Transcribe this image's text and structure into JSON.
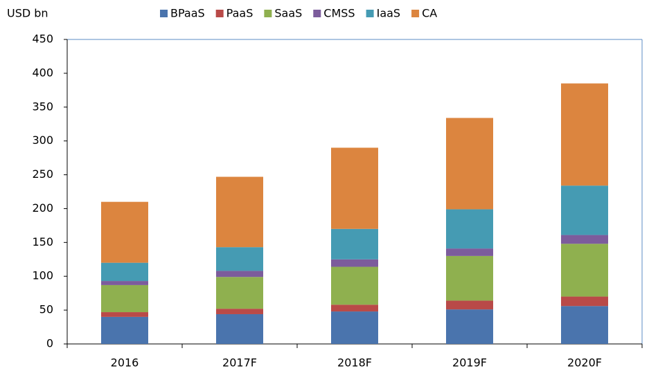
{
  "chart_data": {
    "type": "stacked_bar",
    "y_label": "USD bn",
    "categories": [
      "2016",
      "2017F",
      "2018F",
      "2019F",
      "2020F"
    ],
    "series": [
      {
        "name": "BPaaS",
        "color": "#4a74ad",
        "values": [
          40,
          44,
          48,
          51,
          56
        ]
      },
      {
        "name": "PaaS",
        "color": "#b94a48",
        "values": [
          7,
          8,
          10,
          13,
          14
        ]
      },
      {
        "name": "SaaS",
        "color": "#8fb04f",
        "values": [
          40,
          47,
          56,
          66,
          78
        ]
      },
      {
        "name": "CMSS",
        "color": "#7c5c9c",
        "values": [
          6,
          9,
          11,
          11,
          13
        ]
      },
      {
        "name": "IaaS",
        "color": "#459bb3",
        "values": [
          27,
          35,
          45,
          58,
          73
        ]
      },
      {
        "name": "CA",
        "color": "#dc853f",
        "values": [
          90,
          104,
          120,
          135,
          151
        ]
      }
    ],
    "ylim": [
      0,
      450
    ],
    "yticks": [
      0,
      50,
      100,
      150,
      200,
      250,
      300,
      350,
      400,
      450
    ],
    "legend": "top"
  }
}
